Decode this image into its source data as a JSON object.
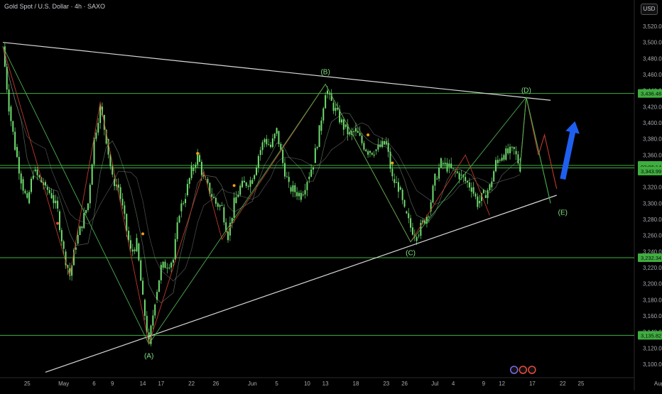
{
  "header": {
    "symbol_title": "Gold Spot / U.S. Dollar · 4h · SAXO",
    "currency": "USD"
  },
  "colors": {
    "background": "#000000",
    "candle": "#6fdc6f",
    "hline": "#3fae3f",
    "trendline": "#d9d9d9",
    "wave_red": "#c0392b",
    "wave_green": "#4caf50",
    "arrow": "#1f5ff0",
    "dot_orange": "#f39c12",
    "tag_green": "#3fae3f"
  },
  "chart_data": {
    "type": "candlestick",
    "title": "Gold Spot / U.S. Dollar · 4h · SAXO",
    "ylim": [
      3085,
      3535
    ],
    "y_ticks": [
      3520,
      3500,
      3480,
      3460,
      3440,
      3420,
      3400,
      3380,
      3360,
      3340,
      3320,
      3300,
      3280,
      3260,
      3240,
      3220,
      3200,
      3180,
      3160,
      3140,
      3120,
      3100
    ],
    "x_ticks": [
      "25",
      "May",
      "6",
      "9",
      "14",
      "17",
      "22",
      "26",
      "Jun",
      "5",
      "10",
      "13",
      "18",
      "23",
      "26",
      "Jul",
      "4",
      "9",
      "12",
      "17",
      "22",
      "25",
      "Aug"
    ],
    "horizontal_levels": [
      3436.48,
      3347.06,
      3343.99,
      3232.34,
      3135.82
    ],
    "price_tags": [
      {
        "label": "3,436.48",
        "price": 3436.48
      },
      {
        "label": "3,347.06",
        "price": 3347.06
      },
      {
        "label": "03:06:14",
        "price": 3345.5
      },
      {
        "label": "3,343.99",
        "price": 3340.0
      },
      {
        "label": "3,232.34",
        "price": 3232.34
      },
      {
        "label": "3,135.82",
        "price": 3135.82
      }
    ],
    "wave_labels": [
      {
        "label": "(A)",
        "date": "May 15",
        "price": 3120
      },
      {
        "label": "(B)",
        "date": "Jun 13",
        "price": 3455
      },
      {
        "label": "(C)",
        "date": "Jun 27",
        "price": 3248
      },
      {
        "label": "(D)",
        "date": "Jul 16",
        "price": 3432
      },
      {
        "label": "(E)",
        "date": "Jul 22",
        "price": 3298
      }
    ],
    "trendlines": [
      {
        "name": "upper",
        "points": [
          [
            "Apr 21",
            3500
          ],
          [
            "Jul 20",
            3428
          ]
        ]
      },
      {
        "name": "lower",
        "points": [
          [
            "Apr 28",
            3090
          ],
          [
            "Jul 21",
            3310
          ]
        ]
      }
    ],
    "close_path": [
      [
        "Apr 21",
        3495
      ],
      [
        "Apr 22",
        3420
      ],
      [
        "Apr 23",
        3370
      ],
      [
        "Apr 24",
        3330
      ],
      [
        "Apr 25",
        3300
      ],
      [
        "Apr 26",
        3340
      ],
      [
        "Apr 28",
        3320
      ],
      [
        "Apr 29",
        3310
      ],
      [
        "Apr 30",
        3290
      ],
      [
        "May 1",
        3240
      ],
      [
        "May 2",
        3210
      ],
      [
        "May 3",
        3250
      ],
      [
        "May 5",
        3300
      ],
      [
        "May 6",
        3380
      ],
      [
        "May 7",
        3420
      ],
      [
        "May 8",
        3380
      ],
      [
        "May 9",
        3330
      ],
      [
        "May 10",
        3320
      ],
      [
        "May 12",
        3240
      ],
      [
        "May 13",
        3250
      ],
      [
        "May 14",
        3180
      ],
      [
        "May 15",
        3125
      ],
      [
        "May 16",
        3180
      ],
      [
        "May 17",
        3220
      ],
      [
        "May 19",
        3230
      ],
      [
        "May 20",
        3290
      ],
      [
        "May 21",
        3310
      ],
      [
        "May 22",
        3340
      ],
      [
        "May 23",
        3360
      ],
      [
        "May 24",
        3330
      ],
      [
        "May 26",
        3300
      ],
      [
        "May 27",
        3295
      ],
      [
        "May 28",
        3260
      ],
      [
        "May 29",
        3300
      ],
      [
        "May 30",
        3320
      ],
      [
        "Jun 1",
        3330
      ],
      [
        "Jun 2",
        3360
      ],
      [
        "Jun 3",
        3380
      ],
      [
        "Jun 4",
        3370
      ],
      [
        "Jun 5",
        3390
      ],
      [
        "Jun 6",
        3350
      ],
      [
        "Jun 7",
        3320
      ],
      [
        "Jun 9",
        3310
      ],
      [
        "Jun 10",
        3330
      ],
      [
        "Jun 11",
        3350
      ],
      [
        "Jun 12",
        3390
      ],
      [
        "Jun 13",
        3440
      ],
      [
        "Jun 14",
        3425
      ],
      [
        "Jun 16",
        3395
      ],
      [
        "Jun 17",
        3385
      ],
      [
        "Jun 18",
        3390
      ],
      [
        "Jun 19",
        3375
      ],
      [
        "Jun 20",
        3365
      ],
      [
        "Jun 21",
        3365
      ],
      [
        "Jun 23",
        3375
      ],
      [
        "Jun 24",
        3330
      ],
      [
        "Jun 25",
        3320
      ],
      [
        "Jun 26",
        3290
      ],
      [
        "Jun 27",
        3270
      ],
      [
        "Jun 28",
        3260
      ],
      [
        "Jun 30",
        3290
      ],
      [
        "Jul 1",
        3330
      ],
      [
        "Jul 2",
        3350
      ],
      [
        "Jul 3",
        3345
      ],
      [
        "Jul 4",
        3340
      ],
      [
        "Jul 5",
        3335
      ],
      [
        "Jul 7",
        3320
      ],
      [
        "Jul 8",
        3300
      ],
      [
        "Jul 9",
        3310
      ],
      [
        "Jul 10",
        3320
      ],
      [
        "Jul 11",
        3350
      ],
      [
        "Jul 12",
        3360
      ],
      [
        "Jul 14",
        3365
      ],
      [
        "Jul 15",
        3345
      ]
    ],
    "projection_red": [
      [
        "Jul 15",
        3345
      ],
      [
        "Jul 16",
        3432
      ],
      [
        "Jul 18",
        3360
      ],
      [
        "Jul 19",
        3385
      ],
      [
        "Jul 21",
        3318
      ]
    ],
    "projection_green": [
      [
        "Jul 15",
        3345
      ],
      [
        "Jul 16",
        3432
      ],
      [
        "Jul 20",
        3300
      ]
    ],
    "arrow": {
      "from": [
        "Jul 22",
        3330
      ],
      "to": [
        "Jul 24",
        3402
      ]
    }
  }
}
